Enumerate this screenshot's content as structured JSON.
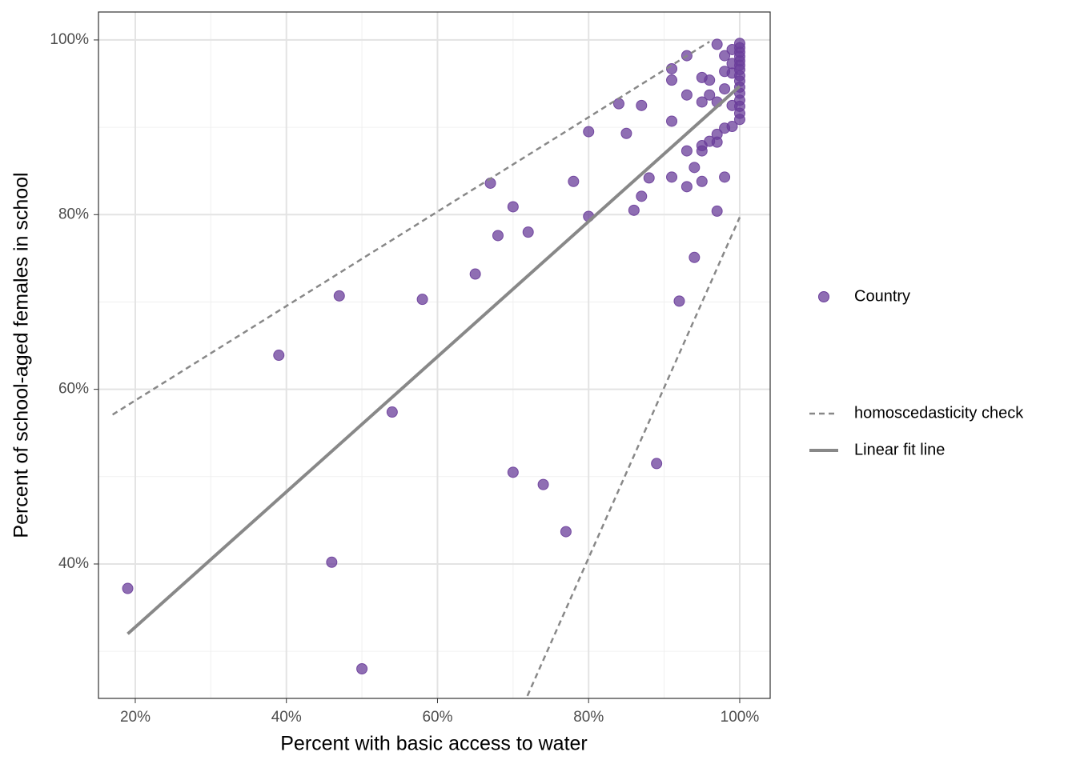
{
  "chart_data": {
    "type": "scatter",
    "x_label": "Percent with basic access to water",
    "y_label": "Percent of school-aged females in school",
    "xlim": [
      15.13,
      104.03
    ],
    "ylim": [
      24.61,
      103.2
    ],
    "xticks": [
      {
        "value": 20,
        "label": "20%"
      },
      {
        "value": 40,
        "label": "40%"
      },
      {
        "value": 60,
        "label": "60%"
      },
      {
        "value": 80,
        "label": "80%"
      },
      {
        "value": 100,
        "label": "100%"
      }
    ],
    "yticks": [
      {
        "value": 40,
        "label": "40%"
      },
      {
        "value": 60,
        "label": "60%"
      },
      {
        "value": 80,
        "label": "80%"
      },
      {
        "value": 100,
        "label": "100%"
      }
    ],
    "minor_xticks": [
      30,
      50,
      70,
      90
    ],
    "minor_yticks": [
      30,
      50,
      70,
      90
    ],
    "grid": true,
    "series": [
      {
        "name": "Country",
        "mode": "markers",
        "color": "#6a3d9a",
        "x": [
          19,
          39,
          46,
          47,
          50,
          54,
          58,
          65,
          67,
          68,
          70,
          70,
          72,
          74,
          77,
          78,
          80,
          80,
          84,
          85,
          86,
          87,
          87,
          88,
          89,
          91,
          91,
          91,
          91,
          92,
          93,
          93,
          93,
          93,
          94,
          94,
          95,
          95,
          95,
          95,
          95,
          96,
          96,
          96,
          97,
          97,
          97,
          97,
          97,
          98,
          98,
          98,
          98,
          98,
          99,
          99,
          99,
          99,
          99,
          100,
          100,
          100,
          100,
          100,
          100,
          100,
          100,
          100,
          100,
          100,
          100,
          100,
          100,
          100
        ],
        "values": [
          37.2,
          63.9,
          40.2,
          70.7,
          28.0,
          57.4,
          70.3,
          73.2,
          83.6,
          77.6,
          80.9,
          50.5,
          78.0,
          49.1,
          43.7,
          83.8,
          89.5,
          79.8,
          92.7,
          89.3,
          80.5,
          92.5,
          82.1,
          84.2,
          51.5,
          96.7,
          95.4,
          90.7,
          84.3,
          70.1,
          98.2,
          93.7,
          87.3,
          83.2,
          75.1,
          85.4,
          95.7,
          92.9,
          87.9,
          87.3,
          83.8,
          95.4,
          93.7,
          88.4,
          99.5,
          92.9,
          89.2,
          88.3,
          80.4,
          98.2,
          96.4,
          94.4,
          89.9,
          84.3,
          98.9,
          97.3,
          96.2,
          92.5,
          90.1,
          99.6,
          99.1,
          98.6,
          98.1,
          97.6,
          97.1,
          96.6,
          95.9,
          95.3,
          94.6,
          93.9,
          93.1,
          92.4,
          91.6,
          90.9
        ]
      },
      {
        "name": "homoscedasticity check",
        "mode": "lines",
        "dash": true,
        "color": "#888888",
        "x": [
          17,
          96,
          null,
          71.9,
          100
        ],
        "values": [
          57.1,
          99.8,
          null,
          24.9,
          79.7
        ]
      },
      {
        "name": "Linear fit line",
        "mode": "lines",
        "dash": false,
        "color": "#888888",
        "x": [
          19,
          100
        ],
        "values": [
          32.0,
          94.7
        ]
      }
    ]
  }
}
